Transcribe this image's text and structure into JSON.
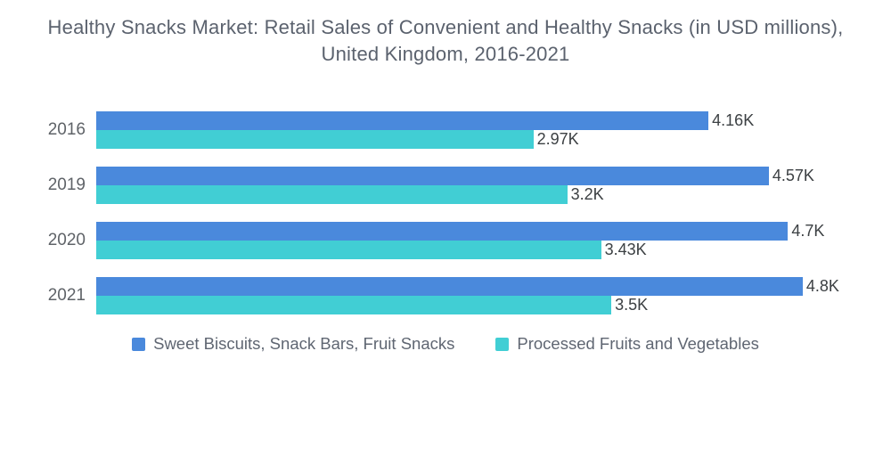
{
  "title": {
    "line1": "Healthy Snacks Market: Retail Sales of Convenient and Healthy Snacks (in USD millions),",
    "line2": "United Kingdom, 2016-2021"
  },
  "colors": {
    "series1_blue": "#4a89dc",
    "series2_teal": "#41ced4",
    "title_text": "#5b626e",
    "category_text": "#5f6368",
    "value_text": "#3c4043"
  },
  "chart_data": {
    "type": "bar",
    "orientation": "horizontal",
    "title": "Healthy Snacks Market: Retail Sales of Convenient and Healthy Snacks (in USD millions), United Kingdom, 2016-2021",
    "categories": [
      "2016",
      "2019",
      "2020",
      "2021"
    ],
    "series": [
      {
        "name": "Sweet Biscuits, Snack Bars, Fruit Snacks",
        "color": "#4a89dc",
        "values": [
          4.16,
          4.57,
          4.7,
          4.8
        ],
        "labels": [
          "4.16K",
          "4.57K",
          "4.7K",
          "4.8K"
        ]
      },
      {
        "name": "Processed Fruits and Vegetables",
        "color": "#41ced4",
        "values": [
          2.97,
          3.2,
          3.43,
          3.5
        ],
        "labels": [
          "2.97K",
          "3.2K",
          "3.43K",
          "3.5K"
        ]
      }
    ],
    "unit": "K = thousands of USD millions",
    "xlim": [
      0,
      5.4
    ],
    "grid": false,
    "axes_visible": false,
    "value_labels_position": "end-of-bar",
    "legend_position": "bottom-center"
  }
}
